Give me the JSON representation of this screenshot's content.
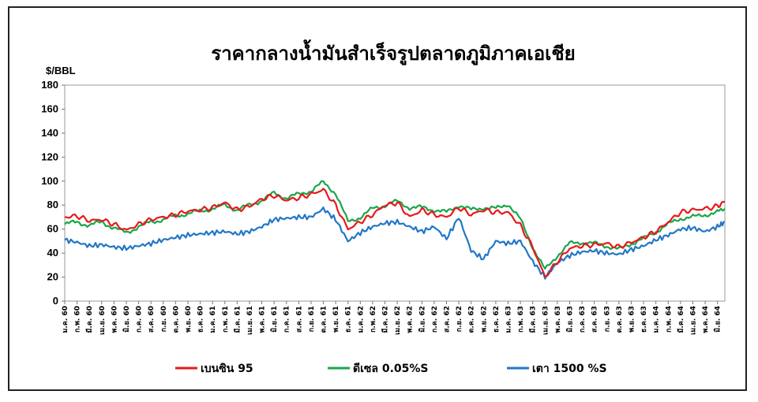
{
  "chart_data": {
    "type": "line",
    "title": "ราคากลางน้ำมันสำเร็จรูปตลาดภูมิภาคเอเชีย",
    "ylabel": "$/BBL",
    "ylim": [
      0,
      180
    ],
    "yticks": [
      0,
      20,
      40,
      60,
      80,
      100,
      120,
      140,
      160,
      180
    ],
    "grid": false,
    "legend_position": "bottom",
    "x_labels": [
      "ม.ค. 60",
      "ก.พ. 60",
      "มี.ค. 60",
      "เม.ย. 60",
      "พ.ค. 60",
      "มิ.ย. 60",
      "ก.ค. 60",
      "ส.ค. 60",
      "ก.ย. 60",
      "ต.ค. 60",
      "พ.ย. 60",
      "ธ.ค. 60",
      "ม.ค. 61",
      "ก.พ. 61",
      "มี.ค. 61",
      "เม.ย. 61",
      "พ.ค. 61",
      "มิ.ย. 61",
      "ก.ค. 61",
      "ส.ค. 61",
      "ก.ย. 61",
      "ต.ค. 61",
      "พ.ย. 61",
      "ธ.ค. 61",
      "ม.ค. 62",
      "ก.พ. 62",
      "มี.ค. 62",
      "เม.ย. 62",
      "พ.ค. 62",
      "มิ.ย. 62",
      "ก.ค. 62",
      "ส.ค. 62",
      "ก.ย. 62",
      "ต.ค. 62",
      "พ.ย. 62",
      "ธ.ค. 62",
      "ม.ค. 63",
      "ก.พ. 63",
      "มี.ค. 63",
      "เม.ย. 63",
      "พ.ค. 63",
      "มิ.ย. 63",
      "ก.ค. 63",
      "ส.ค. 63",
      "ก.ย. 63",
      "ต.ค. 63",
      "พ.ย. 63",
      "ธ.ค. 63",
      "ม.ค. 64",
      "ก.พ. 64",
      "มี.ค. 64",
      "เม.ย. 64",
      "พ.ค. 64",
      "มิ.ย. 64"
    ],
    "x": [
      0,
      1,
      2,
      3,
      4,
      5,
      6,
      7,
      8,
      9,
      10,
      11,
      12,
      13,
      14,
      15,
      16,
      17,
      18,
      19,
      20,
      21,
      22,
      23,
      24,
      25,
      26,
      27,
      28,
      29,
      30,
      31,
      32,
      33,
      34,
      35,
      36,
      37,
      38,
      39,
      40,
      41,
      42,
      43,
      44,
      45,
      46,
      47,
      48,
      49,
      50,
      51,
      52,
      53,
      53.6
    ],
    "series": [
      {
        "name": "เบนซิน 95",
        "color": "#e8191c",
        "values": [
          70,
          71,
          67,
          68,
          64,
          59,
          64,
          68,
          70,
          72,
          75,
          76,
          78,
          82,
          76,
          79,
          85,
          88,
          84,
          86,
          89,
          93,
          80,
          60,
          66,
          72,
          80,
          82,
          70,
          76,
          72,
          70,
          78,
          72,
          76,
          74,
          74,
          63,
          45,
          20,
          33,
          44,
          46,
          47,
          48,
          45,
          49,
          53,
          58,
          66,
          74,
          76,
          77,
          79,
          83
        ]
      },
      {
        "name": "ดีเซล 0.05%S",
        "color": "#1aa64b",
        "values": [
          64,
          66,
          63,
          66,
          61,
          57,
          62,
          66,
          68,
          71,
          73,
          75,
          77,
          80,
          76,
          80,
          84,
          90,
          86,
          89,
          92,
          99,
          90,
          66,
          70,
          77,
          80,
          83,
          78,
          78,
          76,
          74,
          80,
          76,
          78,
          77,
          81,
          68,
          45,
          26,
          38,
          48,
          49,
          48,
          46,
          43,
          48,
          52,
          58,
          64,
          69,
          70,
          72,
          74,
          77
        ]
      },
      {
        "name": "เตา 1500 %S",
        "color": "#2277c6",
        "values": [
          51,
          49,
          46,
          47,
          45,
          44,
          46,
          48,
          51,
          53,
          55,
          56,
          57,
          58,
          56,
          58,
          62,
          68,
          69,
          70,
          70,
          77,
          68,
          50,
          57,
          62,
          65,
          66,
          62,
          58,
          62,
          52,
          70,
          42,
          35,
          50,
          48,
          50,
          33,
          20,
          32,
          38,
          41,
          42,
          40,
          39,
          43,
          46,
          51,
          55,
          60,
          61,
          58,
          62,
          66
        ]
      }
    ]
  }
}
